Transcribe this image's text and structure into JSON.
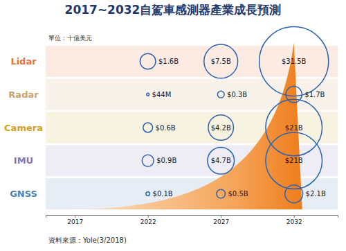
{
  "chart_data": {
    "type": "bubble",
    "title": "2017~2032自駕車感測器產業成長預測",
    "subtitle": "單位：十億美元",
    "source": "資料來源：Yole(3/2018)",
    "x": [
      2022,
      2027,
      2032
    ],
    "xlim": [
      2015,
      2035
    ],
    "xticks": [
      2017,
      2022,
      2027,
      2032
    ],
    "data_labels": true,
    "series": [
      {
        "name": "Lidar",
        "color": "#e8733a",
        "values": [
          1.6,
          7.5,
          31.5
        ],
        "value_labels": [
          "$1.6B",
          "$7.5B",
          "$31.5B"
        ]
      },
      {
        "name": "Radar",
        "color": "#cfa36a",
        "values": [
          0.044,
          0.3,
          1.7
        ],
        "value_labels": [
          "$44M",
          "$0.3B",
          "$1.7B"
        ]
      },
      {
        "name": "Camera",
        "color": "#d0a025",
        "values": [
          0.6,
          4.2,
          21
        ],
        "value_labels": [
          "$0.6B",
          "$4.2B",
          "$21B"
        ]
      },
      {
        "name": "IMU",
        "color": "#8577b3",
        "values": [
          0.9,
          4.7,
          21
        ],
        "value_labels": [
          "$0.9B",
          "$4.7B",
          "$21B"
        ]
      },
      {
        "name": "GNSS",
        "color": "#4d7fb8",
        "values": [
          0.1,
          0.5,
          2.1
        ],
        "value_labels": [
          "$0.1B",
          "$0.5B",
          "$2.1B"
        ]
      }
    ]
  }
}
